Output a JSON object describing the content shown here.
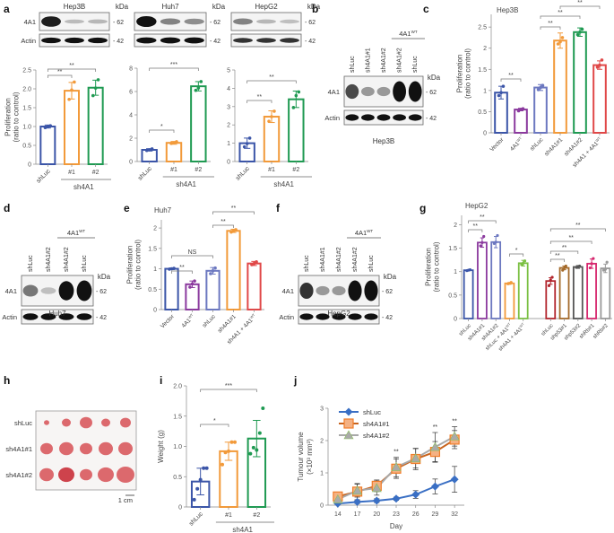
{
  "panel_letters": {
    "a": "a",
    "b": "b",
    "c": "c",
    "d": "d",
    "e": "e",
    "f": "f",
    "g": "g",
    "h": "h",
    "i": "i",
    "j": "j"
  },
  "colors": {
    "blue": "#3b55a8",
    "orange": "#f29a3a",
    "green": "#1f9a52",
    "purple": "#8b3a9e",
    "lightblue": "#6c78c0",
    "red": "#e04848",
    "lightgreen": "#7bc043",
    "darkred": "#b2262e",
    "brown": "#a46a2a",
    "darkgray": "#555555",
    "magenta": "#d6276e",
    "gray": "#9a9a9a",
    "j_blue": "#3a6fc4",
    "j_orange": "#f07d2a",
    "j_gray": "#a9a9a9"
  },
  "blots": {
    "a": [
      {
        "cell": "Hep3B",
        "kda": "kDa",
        "rows": [
          {
            "label": "4A1",
            "marker": "62"
          },
          {
            "label": "Actin",
            "marker": "42"
          }
        ]
      },
      {
        "cell": "Huh7",
        "kda": "kDa",
        "rows": [
          {
            "label": "",
            "marker": "62"
          },
          {
            "label": "",
            "marker": "42"
          }
        ]
      },
      {
        "cell": "HepG2",
        "kda": "kDa",
        "rows": [
          {
            "label": "",
            "marker": "62"
          },
          {
            "label": "",
            "marker": "42"
          }
        ]
      }
    ],
    "b": {
      "cell": "Hep3B",
      "kda": "kDa",
      "group": "4A1",
      "group_sup": "WT",
      "lanes": [
        "shLuc",
        "sh4A1#1",
        "sh4A1#2",
        "sh4A1#2",
        "shLuc"
      ],
      "rows": [
        {
          "label": "4A1",
          "marker": "62"
        },
        {
          "label": "Actin",
          "marker": "42"
        }
      ]
    },
    "d": {
      "cell": "Huh7",
      "kda": "kDa",
      "group": "4A1",
      "group_sup": "WT",
      "lanes": [
        "shLuc",
        "sh4A1#2",
        "sh4A1#2",
        "shLuc"
      ],
      "rows": [
        {
          "label": "4A1",
          "marker": "62"
        },
        {
          "label": "Actin",
          "marker": "42"
        }
      ]
    },
    "f": {
      "cell": "HepG2",
      "kda": "kDa",
      "group": "4A1",
      "group_sup": "WT",
      "lanes": [
        "shLuc",
        "sh4A1#1",
        "sh4A1#2",
        "sh4A1#2",
        "shLuc"
      ],
      "rows": [
        {
          "label": "4A1",
          "marker": "62"
        },
        {
          "label": "Actin",
          "marker": "42"
        }
      ]
    }
  },
  "photo_h": {
    "rows": [
      "shLuc",
      "sh4A1#1",
      "sh4A1#2"
    ],
    "scale": "1 cm"
  },
  "chart_data": [
    {
      "id": "a1",
      "type": "bar",
      "title": "",
      "ylabel": "Proliferation\n(ratio to control)",
      "ylim": [
        0,
        2.5
      ],
      "yticks": [
        "0",
        "0.5",
        "1.0",
        "1.5",
        "2.0",
        "2.5"
      ],
      "categories": [
        "shLuc",
        "#1",
        "#2"
      ],
      "group_label": "sh4A1",
      "values": [
        1.0,
        1.95,
        2.03
      ],
      "errors": [
        0.04,
        0.22,
        0.2
      ],
      "points": [
        [
          0.97,
          1.0,
          1.02
        ],
        [
          1.72,
          1.97,
          2.18
        ],
        [
          1.82,
          2.02,
          2.24
        ]
      ],
      "sig": [
        {
          "from": 0,
          "to": 1,
          "label": "**"
        },
        {
          "from": 0,
          "to": 2,
          "label": "**"
        }
      ]
    },
    {
      "id": "a2",
      "type": "bar",
      "ylim": [
        0,
        8
      ],
      "yticks": [
        "0",
        "2",
        "4",
        "6",
        "8"
      ],
      "categories": [
        "shLuc",
        "#1",
        "#2"
      ],
      "group_label": "sh4A1",
      "values": [
        1.0,
        1.6,
        6.45
      ],
      "errors": [
        0.1,
        0.12,
        0.4
      ],
      "points": [
        [
          0.95,
          1.0,
          1.08
        ],
        [
          1.55,
          1.6,
          1.7
        ],
        [
          6.1,
          6.3,
          6.85
        ]
      ],
      "sig": [
        {
          "from": 0,
          "to": 1,
          "label": "*"
        },
        {
          "from": 0,
          "to": 2,
          "label": "***"
        }
      ]
    },
    {
      "id": "a3",
      "type": "bar",
      "ylim": [
        0,
        5
      ],
      "yticks": [
        "0",
        "1",
        "2",
        "3",
        "4",
        "5"
      ],
      "categories": [
        "shLuc",
        "#1",
        "#2"
      ],
      "group_label": "sh4A1",
      "values": [
        1.0,
        2.45,
        3.4
      ],
      "errors": [
        0.28,
        0.32,
        0.45
      ],
      "points": [
        [
          0.8,
          0.98,
          1.28
        ],
        [
          2.2,
          2.45,
          2.75
        ],
        [
          2.95,
          3.6,
          3.8
        ]
      ],
      "sig": [
        {
          "from": 0,
          "to": 1,
          "label": "**"
        },
        {
          "from": 0,
          "to": 2,
          "label": "**"
        }
      ]
    },
    {
      "id": "c",
      "type": "bar",
      "title": "Hep3B",
      "ylabel": "Proliferation\n(ratio to control)",
      "ylim": [
        0,
        2.8
      ],
      "yticks": [
        "0",
        "0.5",
        "1",
        "1.5",
        "2",
        "2.5"
      ],
      "ytickvals": [
        0,
        0.5,
        1,
        1.5,
        2,
        2.5
      ],
      "categories": [
        "Vector",
        "4A1WT",
        "shLuc",
        "sh4A1#1",
        "sh4A1#2",
        "sh4A1 + 4A1WT"
      ],
      "values": [
        0.95,
        0.55,
        1.07,
        2.18,
        2.38,
        1.6
      ],
      "errors": [
        0.15,
        0.03,
        0.07,
        0.18,
        0.1,
        0.1
      ],
      "points": [
        [
          0.88,
          0.95,
          1.1
        ],
        [
          0.52,
          0.55,
          0.57
        ],
        [
          1.02,
          1.07,
          1.12
        ],
        [
          2.1,
          2.15,
          2.25
        ],
        [
          2.32,
          2.38,
          2.45
        ],
        [
          1.55,
          1.6,
          1.72
        ]
      ],
      "sig": [
        {
          "from": 0,
          "to": 1,
          "label": "**"
        },
        {
          "from": 2,
          "to": 3,
          "label": "**"
        },
        {
          "from": 2,
          "to": 4,
          "label": "**"
        },
        {
          "from": 3,
          "to": 5,
          "label": "**"
        }
      ]
    },
    {
      "id": "e",
      "type": "bar",
      "title": "Huh7",
      "ylabel": "Proliferation\n(ratio to control)",
      "ylim": [
        0,
        2.2
      ],
      "yticks": [
        "0",
        "0.5",
        "1",
        "1.5",
        "2"
      ],
      "ytickvals": [
        0,
        0.5,
        1,
        1.5,
        2
      ],
      "categories": [
        "Vector",
        "4A1WT",
        "shLuc",
        "sh4A1#1",
        "sh4A1 + 4A1WT"
      ],
      "values": [
        1.0,
        0.62,
        0.95,
        1.93,
        1.13
      ],
      "errors": [
        0.02,
        0.08,
        0.08,
        0.04,
        0.05
      ],
      "points": [
        [
          0.99,
          1.0,
          1.01
        ],
        [
          0.55,
          0.63,
          0.7
        ],
        [
          0.88,
          0.95,
          1.02
        ],
        [
          1.9,
          1.93,
          1.96
        ],
        [
          1.1,
          1.13,
          1.17
        ]
      ],
      "sig": [
        {
          "from": 0,
          "to": 1,
          "label": "**"
        },
        {
          "from": 0,
          "to": 2,
          "label": "NS"
        },
        {
          "from": 2,
          "to": 3,
          "label": "**"
        },
        {
          "from": 2,
          "to": 4,
          "label": "**"
        }
      ]
    },
    {
      "id": "g",
      "type": "bar",
      "title": "HepG2",
      "ylabel": "Proliferation\n(ratio to control)",
      "ylim": [
        0,
        2.2
      ],
      "yticks": [
        "0",
        "0.5",
        "1",
        "1.5",
        "2"
      ],
      "ytickvals": [
        0,
        0.5,
        1,
        1.5,
        2
      ],
      "categories": [
        "shLuc",
        "sh4A1#1",
        "sh4A1#2",
        "shLuc + 4A1WT",
        "sh4A1 + 4A1WT",
        "shLuc",
        "shp53#1",
        "shp53#2",
        "shRb#1",
        "shRb#2"
      ],
      "values": [
        1.03,
        1.62,
        1.63,
        0.75,
        1.18,
        0.8,
        1.08,
        1.1,
        1.17,
        1.07
      ],
      "errors": [
        0.01,
        0.1,
        0.12,
        0.02,
        0.06,
        0.07,
        0.04,
        0.03,
        0.1,
        0.09
      ],
      "points": [
        [
          1.02,
          1.03,
          1.04
        ],
        [
          1.55,
          1.62,
          1.75
        ],
        [
          1.6,
          1.63,
          1.77
        ],
        [
          0.74,
          0.75,
          0.77
        ],
        [
          1.15,
          1.18,
          1.23
        ],
        [
          0.7,
          0.82,
          0.88
        ],
        [
          1.03,
          1.08,
          1.12
        ],
        [
          1.09,
          1.1,
          1.12
        ],
        [
          1.08,
          1.17,
          1.28
        ],
        [
          1.03,
          1.05,
          1.2
        ]
      ],
      "sig": [
        {
          "from": 0,
          "to": 1,
          "label": "**"
        },
        {
          "from": 0,
          "to": 2,
          "label": "**"
        },
        {
          "from": 3,
          "to": 4,
          "label": "*"
        },
        {
          "from": 5,
          "to": 6,
          "label": "**"
        },
        {
          "from": 5,
          "to": 7,
          "label": "**"
        },
        {
          "from": 5,
          "to": 8,
          "label": "**"
        },
        {
          "from": 5,
          "to": 9,
          "label": "**"
        }
      ]
    },
    {
      "id": "i",
      "type": "bar",
      "ylabel": "Weight (g)",
      "ylim": [
        0,
        2.0
      ],
      "yticks": [
        "0",
        "0.5",
        "1.0",
        "1.5",
        "2.0"
      ],
      "categories": [
        "shLuc",
        "#1",
        "#2"
      ],
      "group_label": "sh4A1",
      "values": [
        0.42,
        0.92,
        1.13
      ],
      "errors": [
        0.22,
        0.15,
        0.3
      ],
      "points": [
        [
          0.12,
          0.3,
          0.45,
          0.64,
          0.64
        ],
        [
          0.7,
          0.9,
          0.92,
          1.07,
          1.07
        ],
        [
          0.88,
          0.98,
          0.94,
          1.22,
          1.63
        ]
      ],
      "sig": [
        {
          "from": 0,
          "to": 1,
          "label": "*"
        },
        {
          "from": 0,
          "to": 2,
          "label": "***"
        }
      ]
    },
    {
      "id": "j",
      "type": "line",
      "xlabel": "Day",
      "ylabel": "Tumour volume\n(×10³ mm³)",
      "ylim": [
        0,
        3
      ],
      "yticks": [
        "0",
        "1",
        "2",
        "3"
      ],
      "x": [
        14,
        17,
        20,
        23,
        26,
        29,
        32
      ],
      "series": [
        {
          "name": "shLuc",
          "marker": "diamond",
          "values": [
            0.05,
            0.1,
            0.14,
            0.2,
            0.33,
            0.58,
            0.8
          ],
          "errors": [
            0.03,
            0.05,
            0.06,
            0.05,
            0.12,
            0.23,
            0.4
          ]
        },
        {
          "name": "sh4A1#1",
          "marker": "square",
          "values": [
            0.27,
            0.42,
            0.6,
            1.13,
            1.43,
            1.65,
            2.03
          ],
          "errors": [
            0.1,
            0.25,
            0.18,
            0.3,
            0.33,
            0.32,
            0.28
          ]
        },
        {
          "name": "sh4A1#2",
          "marker": "triangle",
          "values": [
            0.18,
            0.45,
            0.53,
            1.18,
            1.45,
            1.8,
            2.13
          ],
          "errors": [
            0.1,
            0.2,
            0.22,
            0.3,
            0.3,
            0.45,
            0.3
          ]
        }
      ],
      "annotations": [
        {
          "x": 23,
          "label": "**"
        },
        {
          "x": 29,
          "label": "**"
        },
        {
          "x": 32,
          "label": "**"
        }
      ]
    }
  ]
}
